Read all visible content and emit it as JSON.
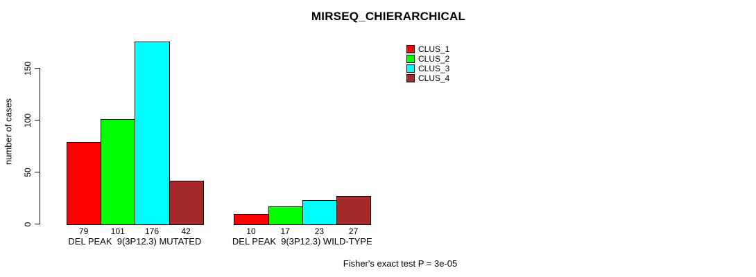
{
  "chart_data": {
    "type": "bar",
    "title": "MIRSEQ_CHIERARCHICAL",
    "ylabel": "number of cases",
    "categories": [
      "DEL PEAK  9(3P12.3) MUTATED",
      "DEL PEAK  9(3P12.3) WILD-TYPE"
    ],
    "series": [
      {
        "name": "CLUS_1",
        "color": "#FF0000",
        "values": [
          79,
          10
        ]
      },
      {
        "name": "CLUS_2",
        "color": "#00FF00",
        "values": [
          101,
          17
        ]
      },
      {
        "name": "CLUS_3",
        "color": "#00FFFF",
        "values": [
          176,
          23
        ]
      },
      {
        "name": "CLUS_4",
        "color": "#A52A2A",
        "values": [
          42,
          27
        ]
      }
    ],
    "yticks": [
      0,
      50,
      100,
      150
    ],
    "ylim": [
      0,
      180
    ],
    "grid": false,
    "bar_value_labels": true,
    "legend_position": "top-right",
    "annotation": "Fisher's exact test P = 3e-05",
    "background": "#FFFFFF",
    "bar_border_color": "#000000"
  }
}
